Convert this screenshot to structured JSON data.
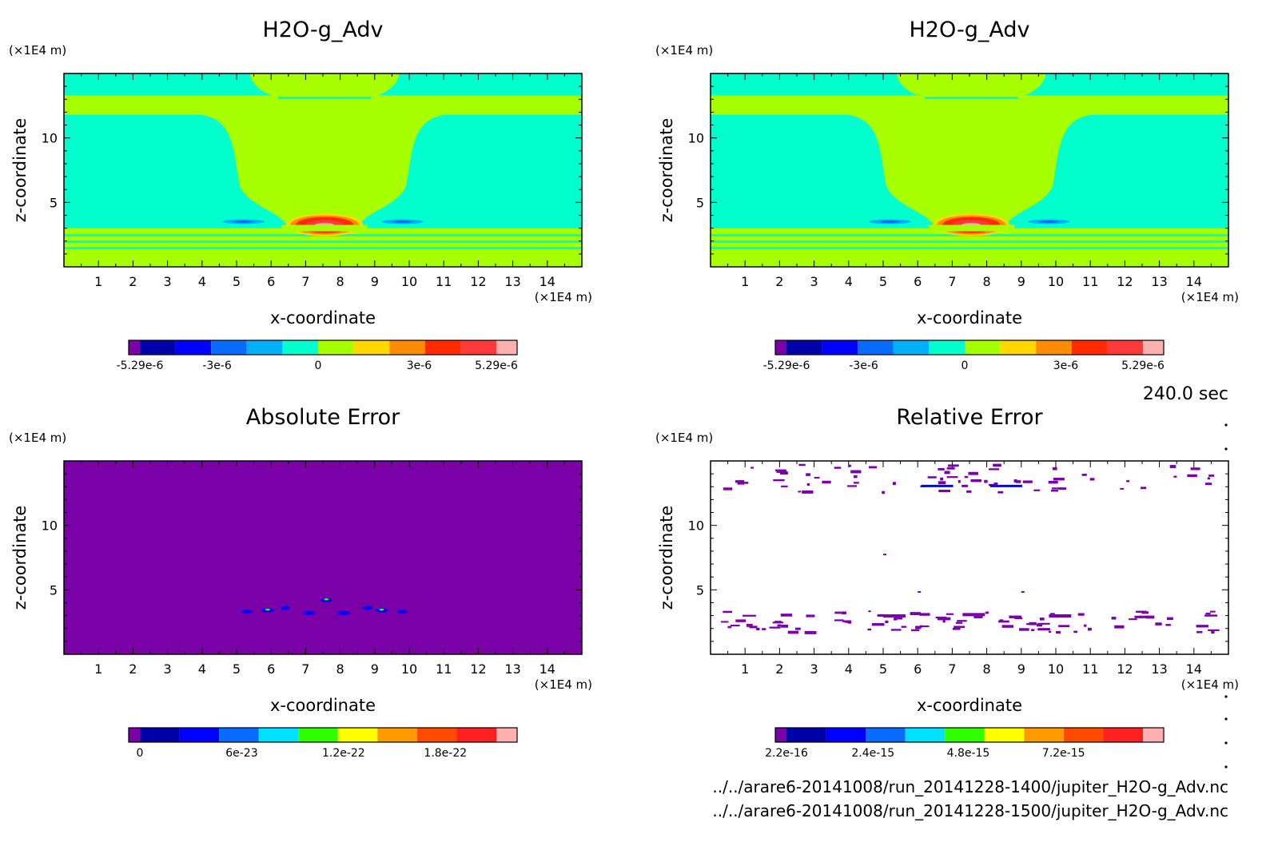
{
  "time_label": "240.0 sec",
  "files": [
    "../../arare6-20141008/run_20141228-1400/jupiter_H2O-g_Adv.nc",
    "../../arare6-20141008/run_20141228-1500/jupiter_H2O-g_Adv.nc"
  ],
  "chart_data": [
    {
      "type": "heatmap",
      "title": "H2O-g_Adv",
      "xlabel": "x-coordinate",
      "ylabel": "z-coordinate",
      "x_unit": "(×1E4 m)",
      "y_unit": "(×1E4 m)",
      "x_ticks": [
        "1",
        "2",
        "3",
        "4",
        "5",
        "6",
        "7",
        "8",
        "9",
        "10",
        "11",
        "12",
        "13",
        "14"
      ],
      "y_ticks": [
        "5",
        "10"
      ],
      "xlim": [
        0,
        15
      ],
      "ylim": [
        0,
        15
      ],
      "colorbar": {
        "colors": [
          "#7a00a8",
          "#0000a8",
          "#0000ff",
          "#0a6cff",
          "#00b0ff",
          "#00ffcc",
          "#a8ff00",
          "#ffd800",
          "#ff8c00",
          "#ff2a00",
          "#ff3a3a",
          "#ffb0b0"
        ],
        "ticks": [
          {
            "value": -5.29e-06,
            "label": "-5.29e-6"
          },
          {
            "value": -3e-06,
            "label": "-3e-6"
          },
          {
            "value": 0,
            "label": "0"
          },
          {
            "value": 3e-06,
            "label": "3e-6"
          },
          {
            "value": 5.29e-06,
            "label": "5.29e-6"
          }
        ],
        "range": [
          -5.29e-06,
          5.29e-06
        ]
      }
    },
    {
      "type": "heatmap",
      "title": "H2O-g_Adv",
      "xlabel": "x-coordinate",
      "ylabel": "z-coordinate",
      "x_unit": "(×1E4 m)",
      "y_unit": "(×1E4 m)",
      "x_ticks": [
        "1",
        "2",
        "3",
        "4",
        "5",
        "6",
        "7",
        "8",
        "9",
        "10",
        "11",
        "12",
        "13",
        "14"
      ],
      "y_ticks": [
        "5",
        "10"
      ],
      "xlim": [
        0,
        15
      ],
      "ylim": [
        0,
        15
      ],
      "colorbar": {
        "colors": [
          "#7a00a8",
          "#0000a8",
          "#0000ff",
          "#0a6cff",
          "#00b0ff",
          "#00ffcc",
          "#a8ff00",
          "#ffd800",
          "#ff8c00",
          "#ff2a00",
          "#ff3a3a",
          "#ffb0b0"
        ],
        "ticks": [
          {
            "value": -5.29e-06,
            "label": "-5.29e-6"
          },
          {
            "value": -3e-06,
            "label": "-3e-6"
          },
          {
            "value": 0,
            "label": "0"
          },
          {
            "value": 3e-06,
            "label": "3e-6"
          },
          {
            "value": 5.29e-06,
            "label": "5.29e-6"
          }
        ],
        "range": [
          -5.29e-06,
          5.29e-06
        ]
      }
    },
    {
      "type": "heatmap",
      "title": "Absolute Error",
      "xlabel": "x-coordinate",
      "ylabel": "z-coordinate",
      "x_unit": "(×1E4 m)",
      "y_unit": "(×1E4 m)",
      "x_ticks": [
        "1",
        "2",
        "3",
        "4",
        "5",
        "6",
        "7",
        "8",
        "9",
        "10",
        "11",
        "12",
        "13",
        "14"
      ],
      "y_ticks": [
        "5",
        "10"
      ],
      "xlim": [
        0,
        15
      ],
      "ylim": [
        0,
        15
      ],
      "colorbar": {
        "colors": [
          "#7a00a8",
          "#0000a8",
          "#0000ff",
          "#0a6cff",
          "#00e0ff",
          "#30ff00",
          "#ffff00",
          "#ff9a00",
          "#ff4a00",
          "#ff2020",
          "#ffb0b0"
        ],
        "ticks": [
          {
            "value": 0,
            "label": "0"
          },
          {
            "value": 6e-23,
            "label": "6e-23"
          },
          {
            "value": 1.2e-22,
            "label": "1.2e-22"
          },
          {
            "value": 1.8e-22,
            "label": "1.8e-22"
          }
        ],
        "range": [
          0,
          2.1e-22
        ]
      }
    },
    {
      "type": "heatmap",
      "title": "Relative Error",
      "xlabel": "x-coordinate",
      "ylabel": "z-coordinate",
      "x_unit": "(×1E4 m)",
      "y_unit": "(×1E4 m)",
      "x_ticks": [
        "1",
        "2",
        "3",
        "4",
        "5",
        "6",
        "7",
        "8",
        "9",
        "10",
        "11",
        "12",
        "13",
        "14"
      ],
      "y_ticks": [
        "5",
        "10"
      ],
      "xlim": [
        0,
        15
      ],
      "ylim": [
        0,
        15
      ],
      "colorbar": {
        "colors": [
          "#7a00a8",
          "#0000a8",
          "#0000ff",
          "#0a6cff",
          "#00e0ff",
          "#30ff00",
          "#ffff00",
          "#ff9a00",
          "#ff4a00",
          "#ff2020",
          "#ffb0b0"
        ],
        "ticks": [
          {
            "value": 2.2e-16,
            "label": "2.2e-16"
          },
          {
            "value": 2.4e-15,
            "label": "2.4e-15"
          },
          {
            "value": 4.8e-15,
            "label": "4.8e-15"
          },
          {
            "value": 7.2e-15,
            "label": "7.2e-15"
          }
        ],
        "range": [
          2.2e-16,
          9.2e-15
        ]
      }
    }
  ]
}
